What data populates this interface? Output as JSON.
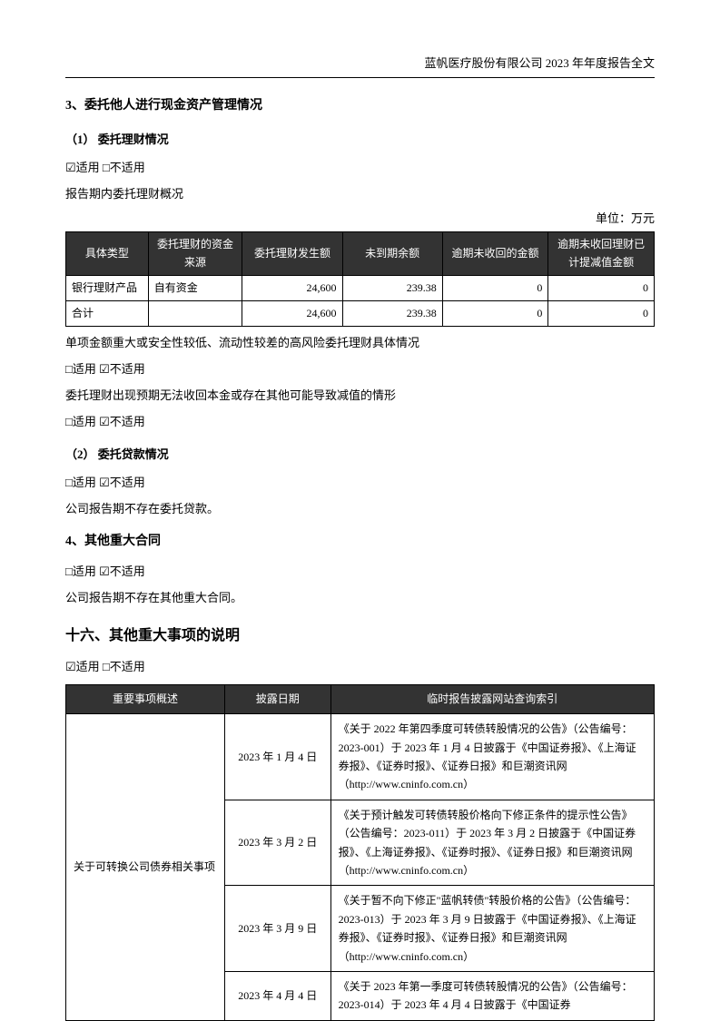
{
  "header": "蓝帆医疗股份有限公司 2023 年年度报告全文",
  "sec3": {
    "title": "3、委托他人进行现金资产管理情况",
    "sub1": {
      "title": "（1） 委托理财情况",
      "applicable": "☑适用  □不适用",
      "overview": "报告期内委托理财概况",
      "unit": "单位：万元",
      "headers": [
        "具体类型",
        "委托理财的资金来源",
        "委托理财发生额",
        "未到期余额",
        "逾期未收回的金额",
        "逾期未收回理财已计提减值金额"
      ],
      "rows": [
        [
          "银行理财产品",
          "自有资金",
          "24,600",
          "239.38",
          "0",
          "0"
        ],
        [
          "合计",
          "",
          "24,600",
          "239.38",
          "0",
          "0"
        ]
      ],
      "note1": "单项金额重大或安全性较低、流动性较差的高风险委托理财具体情况",
      "note1_apply": "□适用 ☑不适用",
      "note2": "委托理财出现预期无法收回本金或存在其他可能导致减值的情形",
      "note2_apply": "□适用 ☑不适用"
    },
    "sub2": {
      "title": "（2） 委托贷款情况",
      "apply": "□适用 ☑不适用",
      "note": "公司报告期不存在委托贷款。"
    }
  },
  "sec4": {
    "title": "4、其他重大合同",
    "apply": "□适用 ☑不适用",
    "note": "公司报告期不存在其他重大合同。"
  },
  "sec16": {
    "title": "十六、其他重大事项的说明",
    "apply": "☑适用  □不适用",
    "headers": [
      "重要事项概述",
      "披露日期",
      "临时报告披露网站查询索引"
    ],
    "topic": "关于可转换公司债券相关事项",
    "rows": [
      {
        "date": "2023 年 1 月 4 日",
        "desc": "《关于 2022 年第四季度可转债转股情况的公告》（公告编号：2023-001）于 2023 年 1 月 4 日披露于《中国证券报》、《上海证券报》、《证券时报》、《证券日报》和巨潮资讯网（http://www.cninfo.com.cn）"
      },
      {
        "date": "2023 年 3 月 2 日",
        "desc": "《关于预计触发可转债转股价格向下修正条件的提示性公告》（公告编号：2023-011）于 2023 年 3 月 2 日披露于《中国证券报》、《上海证券报》、《证券时报》、《证券日报》和巨潮资讯网（http://www.cninfo.com.cn）"
      },
      {
        "date": "2023 年 3 月 9 日",
        "desc": "《关于暂不向下修正\"蓝帆转债\"转股价格的公告》（公告编号：2023-013）于 2023 年 3 月 9 日披露于《中国证券报》、《上海证券报》、《证券时报》、《证券日报》和巨潮资讯网（http://www.cninfo.com.cn）"
      },
      {
        "date": "2023 年 4 月 4 日",
        "desc": "《关于 2023 年第一季度可转债转股情况的公告》（公告编号：2023-014）于 2023 年 4 月 4 日披露于《中国证券"
      }
    ]
  }
}
